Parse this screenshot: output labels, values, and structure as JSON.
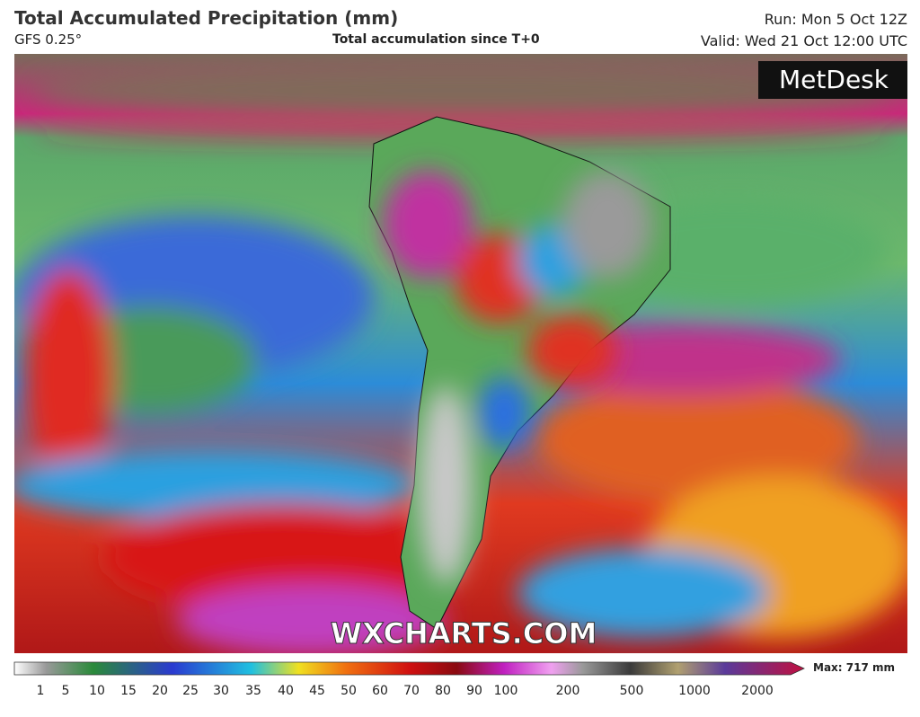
{
  "header": {
    "title": "Total Accumulated Precipitation (mm)",
    "model": "GFS 0.25°",
    "subtitle": "Total accumulation since T+0",
    "run": "Run: Mon 5 Oct 12Z",
    "valid": "Valid: Wed 21 Oct 12:00 UTC"
  },
  "map": {
    "logo": "MetDesk",
    "watermark": "WXCHARTS.COM"
  },
  "legend": {
    "ticks": [
      "1",
      "5",
      "10",
      "15",
      "20",
      "25",
      "30",
      "35",
      "40",
      "45",
      "50",
      "60",
      "70",
      "80",
      "90",
      "100",
      "200",
      "500",
      "1000",
      "2000"
    ],
    "max_label": "Max: 717 mm"
  }
}
